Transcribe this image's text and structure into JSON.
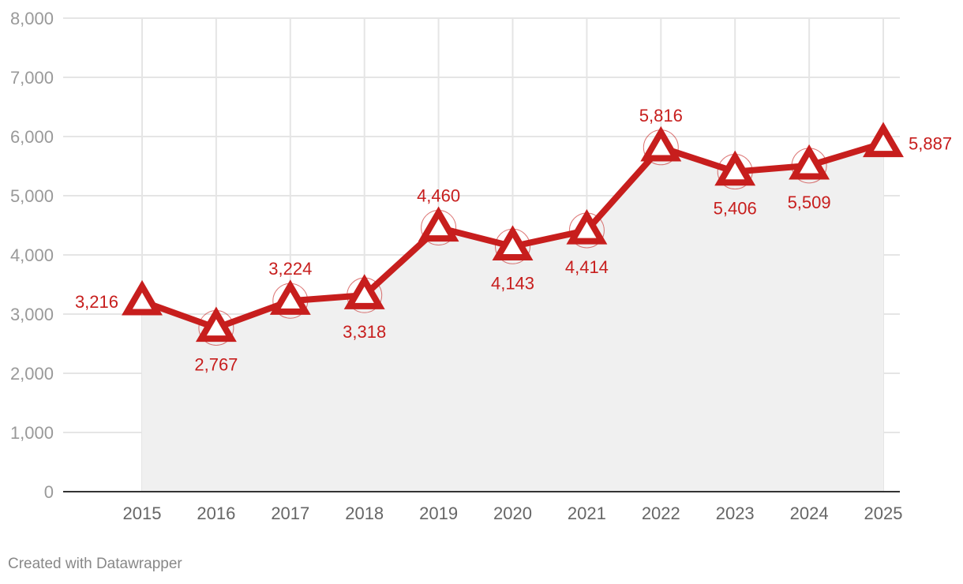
{
  "chart_data": {
    "type": "area",
    "x": [
      "2015",
      "2016",
      "2017",
      "2018",
      "2019",
      "2020",
      "2021",
      "2022",
      "2023",
      "2024",
      "2025"
    ],
    "series": [
      {
        "values": [
          3216,
          2767,
          3224,
          3318,
          4460,
          4143,
          4414,
          5816,
          5406,
          5509,
          5887
        ]
      }
    ],
    "data_labels": [
      "3,216",
      "2,767",
      "3,224",
      "3,318",
      "4,460",
      "4,143",
      "4,414",
      "5,816",
      "5,406",
      "5,509",
      "5,887"
    ],
    "yticks": [
      0,
      1000,
      2000,
      3000,
      4000,
      5000,
      6000,
      7000,
      8000
    ],
    "ytick_labels": [
      "0",
      "1,000",
      "2,000",
      "3,000",
      "4,000",
      "5,000",
      "6,000",
      "7,000",
      "8,000"
    ],
    "ylim": [
      0,
      8000
    ],
    "grid": true,
    "marker": "triangle",
    "colors": {
      "line": "#c71e1d",
      "area": "#f0f0f0",
      "grid": "#e5e5e5",
      "axis": "#333333"
    }
  },
  "footer": {
    "credit": "Created with Datawrapper"
  }
}
